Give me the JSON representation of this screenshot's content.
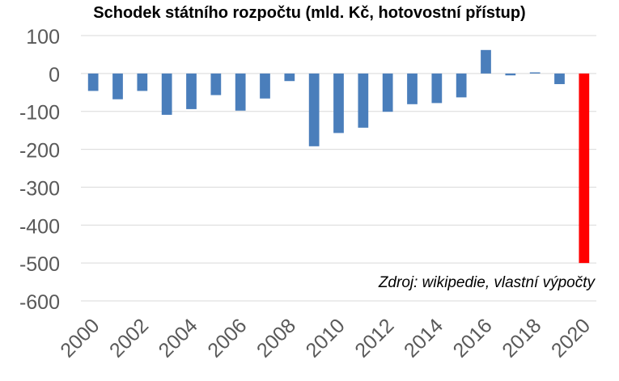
{
  "chart_data": {
    "type": "bar",
    "title": "Schodek státního rozpočtu (mld. Kč, hotovostní přístup)",
    "annotation": "Zdroj: wikipedie, vlastní výpočty",
    "categories": [
      "2000",
      "2001",
      "2002",
      "2003",
      "2004",
      "2005",
      "2006",
      "2007",
      "2008",
      "2009",
      "2010",
      "2011",
      "2012",
      "2013",
      "2014",
      "2015",
      "2016",
      "2017",
      "2018",
      "2019",
      "2020"
    ],
    "values": [
      -46,
      -68,
      -46,
      -109,
      -94,
      -57,
      -98,
      -66,
      -20,
      -192,
      -157,
      -143,
      -101,
      -81,
      -78,
      -63,
      62,
      -5,
      3,
      -28,
      -500
    ],
    "x_tick_labels": [
      "2000",
      "2002",
      "2004",
      "2006",
      "2008",
      "2010",
      "2012",
      "2014",
      "2016",
      "2018",
      "2020"
    ],
    "y_ticks": [
      100,
      0,
      -100,
      -200,
      -300,
      -400,
      -500,
      -600
    ],
    "y_tick_labels": [
      "100",
      "0",
      "-100",
      "-200",
      "-300",
      "-400",
      "-500",
      "-600"
    ],
    "ylim": [
      -600,
      100
    ],
    "grid": true,
    "colors": {
      "bar": "#4a7ebb",
      "highlight": "#ff0000",
      "grid": "#d9d9d9",
      "tick_label": "#595959"
    },
    "highlight_index": 20
  }
}
